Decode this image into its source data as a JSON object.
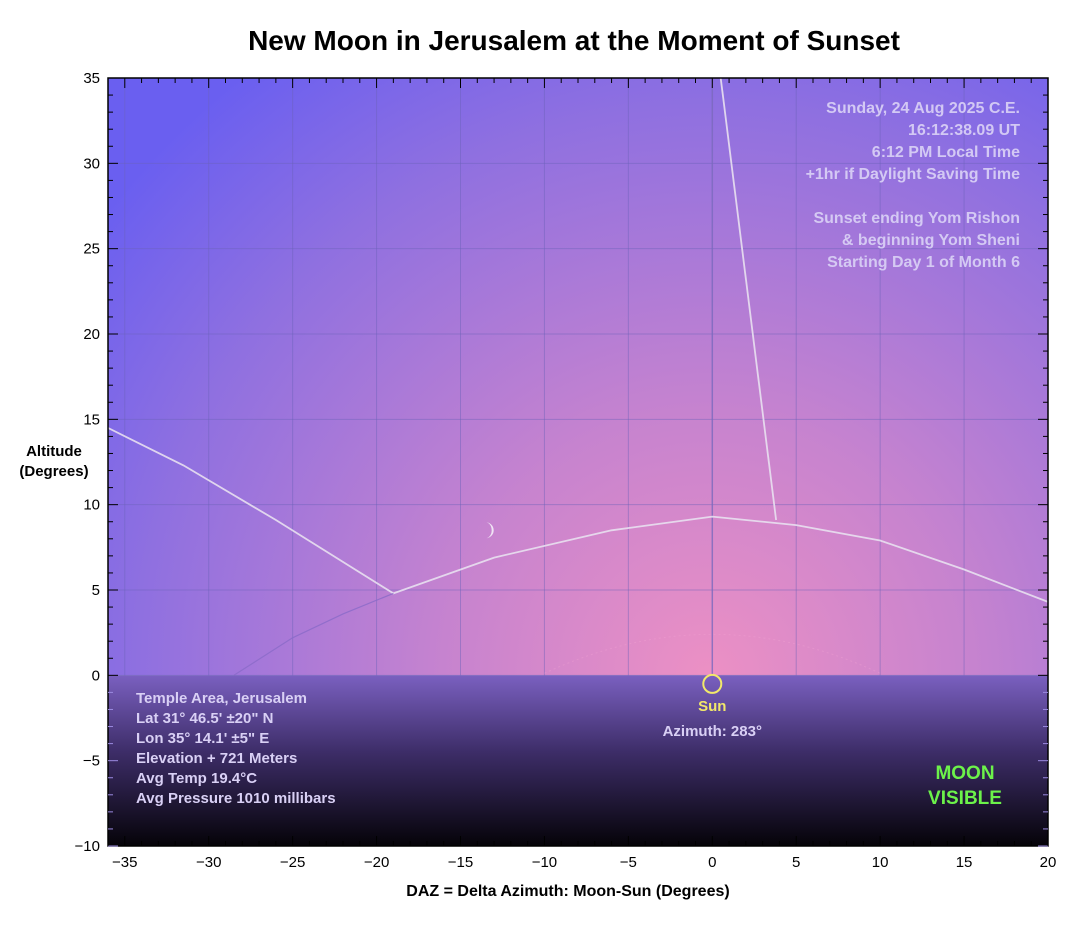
{
  "chart_data": {
    "type": "line",
    "title": "New Moon in Jerusalem at the Moment of Sunset",
    "xlabel": "DAZ = Delta Azimuth: Moon-Sun (Degrees)",
    "ylabel_line1": "Altitude",
    "ylabel_line2": "(Degrees)",
    "xlim": [
      -36,
      20
    ],
    "ylim": [
      -10,
      35
    ],
    "x_ticks": [
      -35,
      -30,
      -25,
      -20,
      -15,
      -10,
      -5,
      0,
      5,
      10,
      15,
      20
    ],
    "x_tick_labels": [
      "−35",
      "−30",
      "−25",
      "−20",
      "−15",
      "−10",
      "−5",
      "0",
      "5",
      "10",
      "15",
      "20"
    ],
    "y_ticks": [
      -10,
      -5,
      0,
      5,
      10,
      15,
      20,
      25,
      30,
      35
    ],
    "y_tick_labels": [
      "−10",
      "−5",
      "0",
      "5",
      "10",
      "15",
      "20",
      "25",
      "30",
      "35"
    ],
    "grid": true,
    "series": [
      {
        "color": "#e8e0f0",
        "x": [
          -36,
          -31.5,
          -26,
          -19,
          -13,
          -6,
          0,
          5,
          10,
          15,
          20
        ],
        "y": [
          14.5,
          12.3,
          9.1,
          4.8,
          6.9,
          8.5,
          9.3,
          8.8,
          7.9,
          6.2,
          4.3
        ]
      },
      {
        "color": "#e8e0f0",
        "x": [
          0.5,
          3.8
        ],
        "y": [
          35,
          9.1
        ]
      }
    ],
    "lower_arc": {
      "x": [
        -28.5,
        -25,
        -22,
        -19
      ],
      "y": [
        0,
        2.2,
        3.6,
        4.8
      ]
    },
    "sun": {
      "x": 0,
      "y": -0.5,
      "label": "Sun",
      "azimuth_label": "Azimuth: 283°",
      "color": "#f2e96a"
    },
    "moon": {
      "x": -13.5,
      "y": 8.5
    },
    "horizon_altitude": 0,
    "info_top_right": [
      "Sunday, 24 Aug 2025 C.E.",
      "16:12:38.09 UT",
      "6:12 PM Local Time",
      "+1hr if Daylight Saving Time",
      "",
      "Sunset ending Yom Rishon",
      "& beginning Yom Sheni",
      "Starting Day 1 of Month 6"
    ],
    "info_bottom_left": [
      "Temple Area, Jerusalem",
      "Lat 31° 46.5' ±20\" N",
      "Lon 35° 14.1' ±5\" E",
      "Elevation + 721 Meters",
      "Avg Temp 19.4°C",
      "Avg Pressure 1010 millibars"
    ],
    "status": [
      "MOON",
      "VISIBLE"
    ],
    "status_color": "#6cf24a",
    "colors": {
      "sky_top": "#6a5ff0",
      "sky_glow": "#ec90c4",
      "ground_top": "#7a60c0",
      "ground_bottom": "#050308",
      "info_text": "#d9d0f5"
    }
  }
}
